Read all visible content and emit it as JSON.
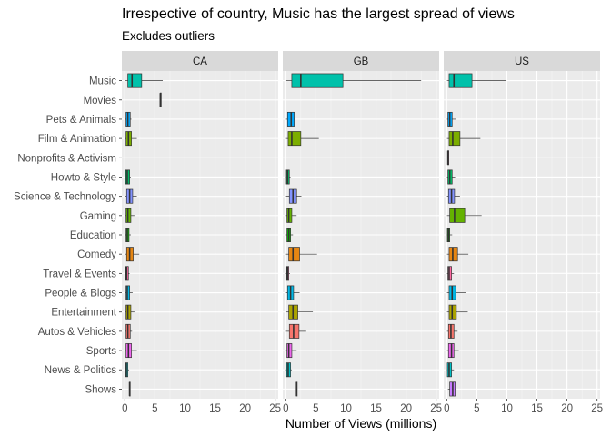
{
  "title": "Irrespective of country, Music has the largest spread of views",
  "subtitle": "Excludes outliers",
  "colors": {
    "panel_bg": "#EBEBEB",
    "strip_bg": "#D9D9D9",
    "grid_major": "#FFFFFF",
    "axis_text": "#4D4D4D"
  },
  "chart_data": {
    "type": "boxplot",
    "orientation": "horizontal",
    "facets": [
      "CA",
      "GB",
      "US"
    ],
    "categories": [
      "Music",
      "Movies",
      "Pets & Animals",
      "Film & Animation",
      "Nonprofits & Activism",
      "Howto & Style",
      "Science & Technology",
      "Gaming",
      "Education",
      "Comedy",
      "Travel & Events",
      "People & Blogs",
      "Entertainment",
      "Autos & Vehicles",
      "Sports",
      "News & Politics",
      "Shows"
    ],
    "category_colors": {
      "Music": "#00C1AA",
      "Movies": "#F8766D",
      "Pets & Animals": "#00A9FF",
      "Film & Animation": "#7CAE00",
      "Nonprofits & Activism": "#FF61C3",
      "Howto & Style": "#00BE67",
      "Science & Technology": "#8494FF",
      "Gaming": "#64B200",
      "Education": "#0CB702",
      "Comedy": "#E68613",
      "Travel & Events": "#FF68A1",
      "People & Blogs": "#00B8E7",
      "Entertainment": "#ABA300",
      "Autos & Vehicles": "#F8766D",
      "Sports": "#ED68ED",
      "News & Politics": "#00BFC4",
      "Shows": "#C77CFF"
    },
    "xlabel": "Number of Views (millions)",
    "ylabel": "",
    "xlim": [
      -0.5,
      25.5
    ],
    "xticks": [
      0,
      5,
      10,
      15,
      20,
      25
    ],
    "data": {
      "CA": {
        "Music": [
          0.05,
          0.5,
          1.2,
          2.8,
          6.3
        ],
        "Movies": [
          5.9,
          5.9,
          5.9,
          5.9,
          5.9
        ],
        "Pets & Animals": [
          0.05,
          0.2,
          0.5,
          0.9,
          1.1
        ],
        "Film & Animation": [
          0.05,
          0.2,
          0.6,
          1.1,
          2.0
        ],
        "Nonprofits & Activism": null,
        "Howto & Style": [
          0.05,
          0.15,
          0.4,
          0.8,
          1.0
        ],
        "Science & Technology": [
          0.05,
          0.3,
          0.8,
          1.3,
          2.0
        ],
        "Gaming": [
          0.05,
          0.2,
          0.5,
          1.0,
          1.6
        ],
        "Education": [
          0.05,
          0.2,
          0.4,
          0.7,
          1.0
        ],
        "Comedy": [
          0.05,
          0.3,
          0.8,
          1.4,
          2.4
        ],
        "Travel & Events": [
          0.05,
          0.15,
          0.3,
          0.6,
          0.8
        ],
        "People & Blogs": [
          0.05,
          0.2,
          0.4,
          0.8,
          1.3
        ],
        "Entertainment": [
          0.05,
          0.2,
          0.5,
          1.0,
          1.6
        ],
        "Autos & Vehicles": [
          0.05,
          0.2,
          0.5,
          0.9,
          1.2
        ],
        "Sports": [
          0.05,
          0.2,
          0.6,
          1.1,
          2.0
        ],
        "News & Politics": [
          0.05,
          0.1,
          0.25,
          0.5,
          0.7
        ],
        "Shows": [
          0.7,
          0.75,
          0.8,
          0.85,
          0.9
        ]
      },
      "GB": {
        "Music": [
          0.1,
          1.0,
          2.5,
          9.5,
          22.5
        ],
        "Movies": null,
        "Pets & Animals": [
          0.05,
          0.3,
          0.9,
          1.4,
          1.6
        ],
        "Film & Animation": [
          0.05,
          0.4,
          1.0,
          2.5,
          5.5
        ],
        "Nonprofits & Activism": null,
        "Howto & Style": [
          0.05,
          0.1,
          0.3,
          0.6,
          0.8
        ],
        "Science & Technology": [
          0.05,
          0.6,
          1.2,
          1.8,
          2.6
        ],
        "Gaming": [
          0.05,
          0.2,
          0.5,
          1.0,
          1.8
        ],
        "Education": [
          0.05,
          0.2,
          0.5,
          0.8,
          1.2
        ],
        "Comedy": [
          0.05,
          0.5,
          1.2,
          2.3,
          5.2
        ],
        "Travel & Events": [
          0.05,
          0.15,
          0.3,
          0.5,
          0.7
        ],
        "People & Blogs": [
          0.05,
          0.3,
          0.8,
          1.3,
          2.3
        ],
        "Entertainment": [
          0.1,
          0.5,
          1.2,
          2.0,
          4.5
        ],
        "Autos & Vehicles": [
          0.05,
          0.6,
          1.3,
          2.2,
          3.4
        ],
        "Sports": [
          0.05,
          0.2,
          0.5,
          1.0,
          1.8
        ],
        "News & Politics": [
          0.05,
          0.15,
          0.4,
          0.8,
          1.0
        ],
        "Shows": [
          1.7,
          1.75,
          1.8,
          1.85,
          1.9
        ]
      },
      "US": {
        "Music": [
          0.05,
          0.4,
          1.2,
          4.2,
          9.8
        ],
        "Movies": null,
        "Pets & Animals": [
          0.05,
          0.2,
          0.5,
          0.9,
          1.5
        ],
        "Film & Animation": [
          0.05,
          0.4,
          1.0,
          2.2,
          5.6
        ],
        "Nonprofits & Activism": [
          0.1,
          0.15,
          0.2,
          0.35,
          0.4
        ],
        "Howto & Style": [
          0.05,
          0.2,
          0.5,
          0.9,
          1.4
        ],
        "Science & Technology": [
          0.05,
          0.3,
          0.8,
          1.3,
          2.2
        ],
        "Gaming": [
          0.05,
          0.5,
          1.3,
          3.0,
          5.8
        ],
        "Education": [
          0.05,
          0.1,
          0.3,
          0.5,
          0.9
        ],
        "Comedy": [
          0.05,
          0.4,
          1.0,
          1.8,
          3.6
        ],
        "Travel & Events": [
          0.05,
          0.2,
          0.4,
          0.8,
          1.2
        ],
        "People & Blogs": [
          0.05,
          0.4,
          0.9,
          1.5,
          3.2
        ],
        "Entertainment": [
          0.05,
          0.4,
          0.9,
          1.6,
          3.5
        ],
        "Autos & Vehicles": [
          0.05,
          0.3,
          0.7,
          1.2,
          1.8
        ],
        "Sports": [
          0.05,
          0.3,
          0.8,
          1.2,
          2.0
        ],
        "News & Politics": [
          0.05,
          0.1,
          0.4,
          0.8,
          1.2
        ],
        "Shows": [
          0.2,
          0.5,
          1.0,
          1.4,
          1.6
        ]
      }
    },
    "grid": true,
    "legend": "none"
  }
}
